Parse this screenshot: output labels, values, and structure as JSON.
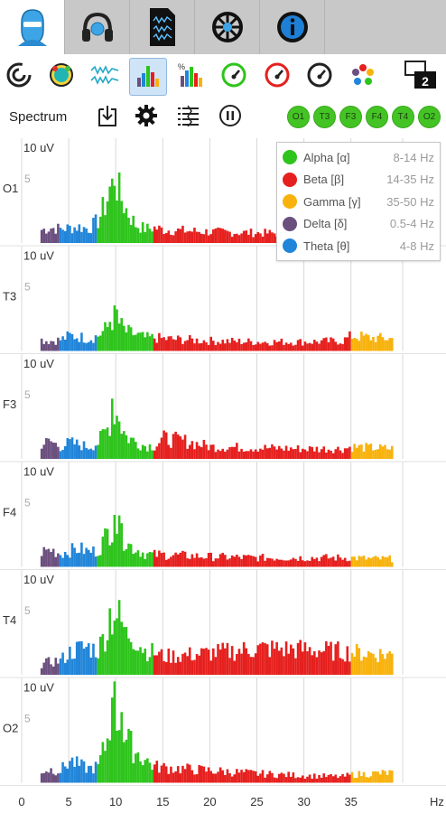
{
  "tabs": [
    {
      "name": "head-avatar-icon",
      "active": true
    },
    {
      "name": "headphones-icon",
      "active": false
    },
    {
      "name": "recording-file-icon",
      "active": false
    },
    {
      "name": "settings-wheel-icon",
      "active": false
    },
    {
      "name": "info-icon",
      "active": false
    }
  ],
  "toolbar": {
    "items": [
      "signal-quality-icon",
      "head-map-icon",
      "raw-eeg-icon",
      "spectrum-icon",
      "band-power-icon",
      "green-gauge-icon",
      "red-gauge-icon",
      "dark-gauge-icon",
      "color-dots-icon",
      "two-screens-icon"
    ],
    "active_index": 3,
    "screen_badge": "2"
  },
  "header": {
    "title": "Spectrum",
    "channels": [
      "O1",
      "T3",
      "F3",
      "F4",
      "T4",
      "O2"
    ]
  },
  "colors": {
    "alpha": "#2ec41c",
    "beta": "#e5201e",
    "gamma": "#f8b20c",
    "delta": "#6b4f7e",
    "theta": "#2185d9",
    "chip": "#44c424"
  },
  "legend": [
    {
      "name": "Alpha [α]",
      "range": "8-14 Hz",
      "color": "#2ec41c"
    },
    {
      "name": "Beta [β]",
      "range": "14-35 Hz",
      "color": "#e5201e"
    },
    {
      "name": "Gamma [γ]",
      "range": "35-50 Hz",
      "color": "#f8b20c"
    },
    {
      "name": "Delta [δ]",
      "range": "0.5-4 Hz",
      "color": "#6b4f7e"
    },
    {
      "name": "Theta [θ]",
      "range": "4-8 Hz",
      "color": "#2185d9"
    }
  ],
  "chart_data": {
    "type": "bar",
    "title": "Spectrum",
    "x_unit": "Hz",
    "x_ticks": [
      0,
      5,
      10,
      15,
      20,
      25,
      30,
      35
    ],
    "xlim": [
      0,
      45
    ],
    "y_top_label": "10 uV",
    "y_mid_label": "5",
    "ylim": [
      0,
      10
    ],
    "bands": [
      {
        "name": "Delta",
        "from": 2,
        "to": 4,
        "color": "#6b4f7e"
      },
      {
        "name": "Theta",
        "from": 4,
        "to": 8,
        "color": "#2185d9"
      },
      {
        "name": "Alpha",
        "from": 8,
        "to": 14,
        "color": "#2ec41c"
      },
      {
        "name": "Beta",
        "from": 14,
        "to": 35,
        "color": "#e5201e"
      },
      {
        "name": "Gamma",
        "from": 35,
        "to": 39.5,
        "color": "#f8b20c"
      }
    ],
    "channels": [
      {
        "label": "O1",
        "profile": [
          [
            2,
            1.3
          ],
          [
            3,
            1.5
          ],
          [
            4,
            1.4
          ],
          [
            5,
            1.5
          ],
          [
            6,
            1.6
          ],
          [
            7,
            1.4
          ],
          [
            8,
            2.2
          ],
          [
            9,
            4.3
          ],
          [
            9.7,
            7.2
          ],
          [
            10.2,
            5.0
          ],
          [
            11,
            3.3
          ],
          [
            12,
            1.8
          ],
          [
            13,
            1.4
          ],
          [
            14,
            1.5
          ],
          [
            15,
            1.3
          ],
          [
            20,
            1.1
          ],
          [
            25,
            1.0
          ],
          [
            30,
            0.9
          ],
          [
            35,
            0.0
          ],
          [
            39.5,
            0.0
          ]
        ],
        "peak": [
          9.6,
          6.2
        ],
        "peak2": [
          9.1,
          4.0
        ]
      },
      {
        "label": "T3",
        "profile": [
          [
            2,
            1.1
          ],
          [
            3,
            1.0
          ],
          [
            4,
            1.1
          ],
          [
            5,
            1.5
          ],
          [
            6,
            1.4
          ],
          [
            7,
            1.2
          ],
          [
            8,
            1.5
          ],
          [
            9,
            2.3
          ],
          [
            9.7,
            3.4
          ],
          [
            10.5,
            2.4
          ],
          [
            11,
            1.9
          ],
          [
            12,
            1.6
          ],
          [
            13,
            1.3
          ],
          [
            14,
            1.3
          ],
          [
            15,
            1.2
          ],
          [
            20,
            1.0
          ],
          [
            25,
            0.9
          ],
          [
            30,
            0.9
          ],
          [
            34,
            1.0
          ],
          [
            35,
            1.5
          ],
          [
            37,
            1.3
          ],
          [
            39.5,
            1.2
          ]
        ],
        "peak": [
          10.0,
          4.0
        ],
        "peak2": [
          9.3,
          2.8
        ]
      },
      {
        "label": "F3",
        "profile": [
          [
            2,
            1.5
          ],
          [
            3,
            1.7
          ],
          [
            4,
            1.2
          ],
          [
            5,
            1.6
          ],
          [
            6,
            1.4
          ],
          [
            7,
            1.2
          ],
          [
            8,
            1.6
          ],
          [
            9,
            3.0
          ],
          [
            9.7,
            5.0
          ],
          [
            10.5,
            3.2
          ],
          [
            11,
            2.2
          ],
          [
            12,
            1.7
          ],
          [
            13,
            1.3
          ],
          [
            14,
            1.3
          ],
          [
            15,
            2.0
          ],
          [
            17,
            1.8
          ],
          [
            20,
            1.2
          ],
          [
            25,
            1.1
          ],
          [
            30,
            1.0
          ],
          [
            34,
            1.0
          ],
          [
            35,
            1.2
          ],
          [
            37,
            1.1
          ],
          [
            39.5,
            1.0
          ]
        ],
        "peak": [
          9.6,
          5.8
        ],
        "peak2": [
          10.2,
          3.6
        ]
      },
      {
        "label": "F4",
        "profile": [
          [
            2,
            1.5
          ],
          [
            3,
            1.7
          ],
          [
            4,
            1.3
          ],
          [
            5,
            1.6
          ],
          [
            6,
            1.8
          ],
          [
            7,
            1.5
          ],
          [
            8,
            1.6
          ],
          [
            9,
            3.3
          ],
          [
            9.7,
            4.5
          ],
          [
            10.5,
            3.1
          ],
          [
            11,
            2.3
          ],
          [
            12,
            1.8
          ],
          [
            13,
            1.3
          ],
          [
            14,
            1.2
          ],
          [
            15,
            1.2
          ],
          [
            20,
            1.0
          ],
          [
            25,
            0.9
          ],
          [
            30,
            0.9
          ],
          [
            34,
            0.9
          ],
          [
            35,
            0.9
          ],
          [
            37,
            0.8
          ],
          [
            39.5,
            0.8
          ]
        ],
        "peak": [
          9.7,
          5.0
        ],
        "peak2": [
          10.4,
          4.2
        ]
      },
      {
        "label": "T4",
        "profile": [
          [
            2,
            1.0
          ],
          [
            3,
            1.3
          ],
          [
            4,
            1.4
          ],
          [
            5,
            2.2
          ],
          [
            6,
            2.6
          ],
          [
            7,
            2.7
          ],
          [
            8,
            2.4
          ],
          [
            9,
            4.6
          ],
          [
            9.7,
            6.5
          ],
          [
            10.5,
            5.0
          ],
          [
            11,
            4.3
          ],
          [
            12,
            3.6
          ],
          [
            13,
            2.4
          ],
          [
            14,
            2.2
          ],
          [
            15,
            1.8
          ],
          [
            18,
            2.0
          ],
          [
            22,
            2.3
          ],
          [
            25,
            2.6
          ],
          [
            30,
            2.5
          ],
          [
            34,
            2.3
          ],
          [
            35,
            2.2
          ],
          [
            37,
            2.1
          ],
          [
            39.5,
            2.0
          ]
        ],
        "peak": [
          9.3,
          6.4
        ],
        "peak2": [
          11.0,
          4.6
        ]
      },
      {
        "label": "O2",
        "profile": [
          [
            2,
            1.2
          ],
          [
            3,
            1.3
          ],
          [
            4,
            1.2
          ],
          [
            5,
            2.2
          ],
          [
            6,
            1.7
          ],
          [
            7,
            1.4
          ],
          [
            8,
            1.6
          ],
          [
            9,
            4.3
          ],
          [
            9.7,
            7.7
          ],
          [
            10.5,
            5.2
          ],
          [
            11,
            4.2
          ],
          [
            12,
            3.1
          ],
          [
            13,
            2.3
          ],
          [
            14,
            1.6
          ],
          [
            15,
            1.5
          ],
          [
            20,
            1.2
          ],
          [
            25,
            0.9
          ],
          [
            30,
            0.7
          ],
          [
            34,
            0.6
          ],
          [
            35,
            0.8
          ],
          [
            37,
            0.9
          ],
          [
            39.5,
            1.0
          ]
        ],
        "peak": [
          9.6,
          8.2
        ],
        "peak2": [
          10.4,
          6.8
        ]
      }
    ]
  }
}
